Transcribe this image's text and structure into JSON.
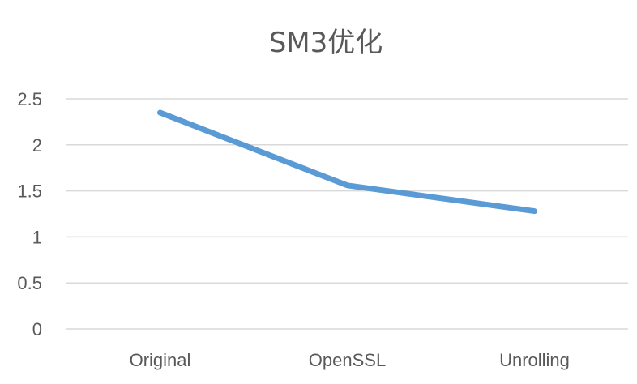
{
  "chart_data": {
    "type": "line",
    "title": "SM3优化",
    "categories": [
      "Original",
      "OpenSSL",
      "Unrolling"
    ],
    "series": [
      {
        "values": [
          2.35,
          1.56,
          1.28
        ]
      }
    ],
    "y_ticks": [
      "0",
      "0.5",
      "1",
      "1.5",
      "2",
      "2.5"
    ],
    "ylim": [
      0,
      2.5
    ],
    "grid": true,
    "legend": "none",
    "xlabel": "",
    "ylabel": ""
  },
  "colors": {
    "series": "#5b9bd5",
    "grid": "#d9d9d9",
    "text": "#595959"
  }
}
